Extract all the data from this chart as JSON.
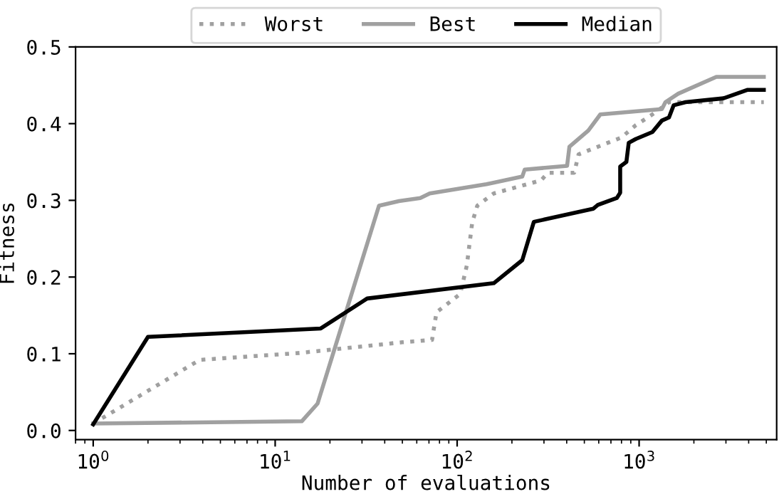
{
  "chart_data": {
    "type": "line",
    "xlabel": "Number of evaluations",
    "ylabel": "Fitness",
    "log": "x",
    "xlim": [
      0.8,
      5700
    ],
    "ylim": [
      -0.012,
      0.5
    ],
    "xticks": [
      {
        "value": 1,
        "label": "10$^{0}$"
      },
      {
        "value": 10,
        "label": "10$^{1}$"
      },
      {
        "value": 100,
        "label": "10$^{2}$"
      },
      {
        "value": 1000,
        "label": "10$^{3}$"
      }
    ],
    "yticks": [
      {
        "value": 0,
        "label": "0.0"
      },
      {
        "value": 0.1,
        "label": "0.1"
      },
      {
        "value": 0.2,
        "label": "0.2"
      },
      {
        "value": 0.3,
        "label": "0.3"
      },
      {
        "value": 0.4,
        "label": "0.4"
      },
      {
        "value": 0.5,
        "label": "0.5"
      }
    ],
    "legend": "top",
    "grid": false,
    "series": [
      {
        "name": "Worst",
        "color": "#a0a0a0",
        "line_style": "dotted",
        "x": [
          1,
          3.85,
          13.6,
          50,
          72.8,
          77,
          104,
          113,
          121,
          129,
          159,
          289,
          316,
          440,
          465,
          801,
          959,
          1218,
          1459,
          4845
        ],
        "values": [
          0.009,
          0.092,
          0.101,
          0.115,
          0.118,
          0.154,
          0.178,
          0.215,
          0.271,
          0.293,
          0.309,
          0.326,
          0.336,
          0.336,
          0.36,
          0.382,
          0.398,
          0.414,
          0.428,
          0.428
        ]
      },
      {
        "name": "Best",
        "color": "#a0a0a0",
        "line_style": "solid",
        "x": [
          1,
          14,
          17.1,
          37.2,
          47.9,
          62.7,
          70.7,
          145,
          228,
          235,
          402,
          414,
          526,
          612,
          1334,
          1395,
          1640,
          2656,
          4845
        ],
        "values": [
          0.009,
          0.012,
          0.035,
          0.293,
          0.299,
          0.303,
          0.309,
          0.321,
          0.331,
          0.34,
          0.345,
          0.37,
          0.391,
          0.412,
          0.419,
          0.428,
          0.439,
          0.461,
          0.461
        ]
      },
      {
        "name": "Median",
        "color": "#000000",
        "line_style": "solid",
        "x": [
          1,
          2,
          17.8,
          32,
          159,
          228,
          264,
          559,
          593,
          754,
          787,
          787,
          851,
          877,
          959,
          1183,
          1334,
          1459,
          1549,
          1800,
          2904,
          3925,
          4845
        ],
        "values": [
          0.008,
          0.122,
          0.133,
          0.172,
          0.192,
          0.222,
          0.272,
          0.289,
          0.294,
          0.303,
          0.31,
          0.344,
          0.35,
          0.375,
          0.38,
          0.389,
          0.404,
          0.408,
          0.424,
          0.428,
          0.433,
          0.444,
          0.444
        ]
      }
    ]
  }
}
